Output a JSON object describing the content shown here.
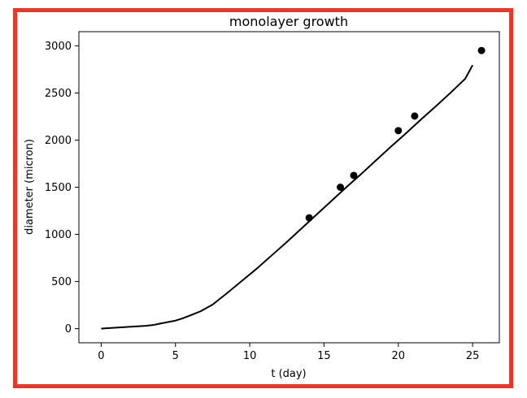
{
  "colors": {
    "frame": "#e23b2e",
    "line": "#000000",
    "points": "#000000",
    "axes": "#000000",
    "background": "#ffffff"
  },
  "chart_data": {
    "type": "line",
    "title": "monolayer growth",
    "xlabel": "t (day)",
    "ylabel": "diameter (micron)",
    "xlim": [
      -1.5,
      26.8
    ],
    "ylim": [
      -150,
      3150
    ],
    "xticks": [
      0,
      5,
      10,
      15,
      20,
      25
    ],
    "yticks": [
      0,
      500,
      1000,
      1500,
      2000,
      2500,
      3000
    ],
    "grid": false,
    "series": [
      {
        "kind": "line",
        "x": [
          0,
          1,
          2,
          3,
          3.5,
          4,
          5,
          5.5,
          6,
          6.7,
          7.5,
          8.5,
          9.5,
          10.5,
          11.5,
          12.5,
          13.5,
          14.5,
          15.5,
          16.5,
          17.5,
          18.5,
          19.5,
          20.5,
          21.5,
          22.5,
          23.5,
          24.5,
          25
        ],
        "values": [
          0,
          10,
          20,
          30,
          38,
          55,
          85,
          110,
          140,
          185,
          255,
          380,
          510,
          640,
          780,
          920,
          1065,
          1210,
          1355,
          1500,
          1640,
          1785,
          1930,
          2070,
          2215,
          2355,
          2500,
          2650,
          2795
        ]
      },
      {
        "kind": "scatter",
        "x": [
          14,
          16.1,
          17,
          20,
          21.1,
          25.6
        ],
        "values": [
          1175,
          1500,
          1625,
          2100,
          2255,
          2950
        ]
      }
    ]
  }
}
